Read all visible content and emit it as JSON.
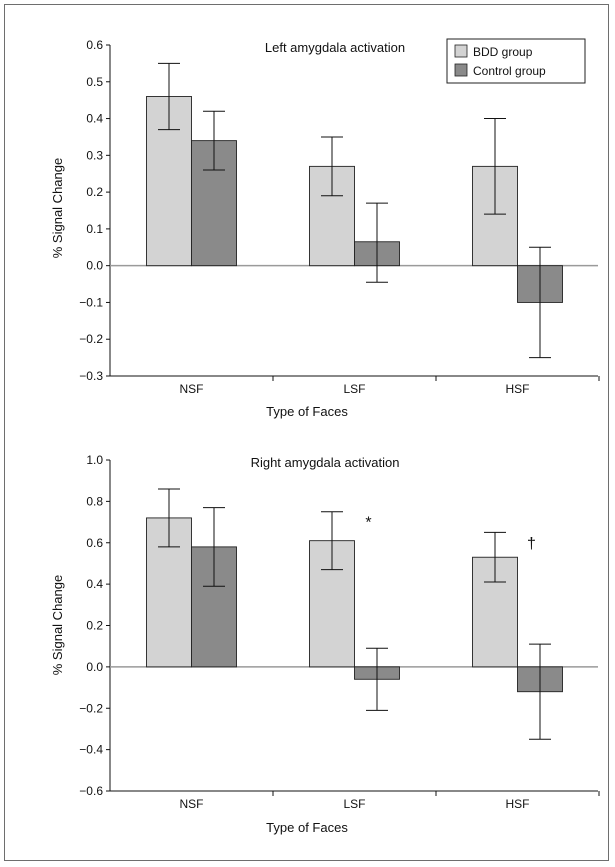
{
  "colors": {
    "bdd": "#d3d3d3",
    "control": "#8a8a8a",
    "zero_line": "#9a9a9a",
    "frame": "#6e6e6e"
  },
  "chart_data": [
    {
      "type": "bar",
      "title": "Left amygdala activation",
      "xlabel": "Type of Faces",
      "ylabel": "% Signal Change",
      "categories": [
        "NSF",
        "LSF",
        "HSF"
      ],
      "ylim": [
        -0.3,
        0.6
      ],
      "yticks": [
        -0.3,
        -0.2,
        -0.1,
        0.0,
        0.1,
        0.2,
        0.3,
        0.4,
        0.5,
        0.6
      ],
      "ytick_labels": [
        "−0.3",
        "−0.2",
        "−0.1",
        "0.0",
        "0.1",
        "0.2",
        "0.3",
        "0.4",
        "0.5",
        "0.6"
      ],
      "legend": {
        "position": "top-right",
        "entries": [
          "BDD group",
          "Control group"
        ]
      },
      "series": [
        {
          "name": "BDD group",
          "values": [
            0.46,
            0.27,
            0.27
          ],
          "err_low": [
            0.37,
            0.19,
            0.14
          ],
          "err_high": [
            0.55,
            0.35,
            0.4
          ]
        },
        {
          "name": "Control group",
          "values": [
            0.34,
            0.065,
            -0.1
          ],
          "err_low": [
            0.26,
            -0.045,
            -0.25
          ],
          "err_high": [
            0.42,
            0.17,
            0.05
          ]
        }
      ],
      "annotations": []
    },
    {
      "type": "bar",
      "title": "Right amygdala activation",
      "xlabel": "Type of Faces",
      "ylabel": "% Signal Change",
      "categories": [
        "NSF",
        "LSF",
        "HSF"
      ],
      "ylim": [
        -0.6,
        1.0
      ],
      "yticks": [
        -0.6,
        -0.4,
        -0.2,
        0.0,
        0.2,
        0.4,
        0.6,
        0.8,
        1.0
      ],
      "ytick_labels": [
        "−0.6",
        "−0.4",
        "−0.2",
        "0.0",
        "0.2",
        "0.4",
        "0.6",
        "0.8",
        "1.0"
      ],
      "series": [
        {
          "name": "BDD group",
          "values": [
            0.72,
            0.61,
            0.53
          ],
          "err_low": [
            0.58,
            0.47,
            0.41
          ],
          "err_high": [
            0.86,
            0.75,
            0.65
          ]
        },
        {
          "name": "Control group",
          "values": [
            0.58,
            -0.06,
            -0.12
          ],
          "err_low": [
            0.39,
            -0.21,
            -0.35
          ],
          "err_high": [
            0.77,
            0.09,
            0.11
          ]
        }
      ],
      "annotations": [
        {
          "text": "*",
          "category": "LSF"
        },
        {
          "text": "†",
          "category": "HSF"
        }
      ]
    }
  ]
}
